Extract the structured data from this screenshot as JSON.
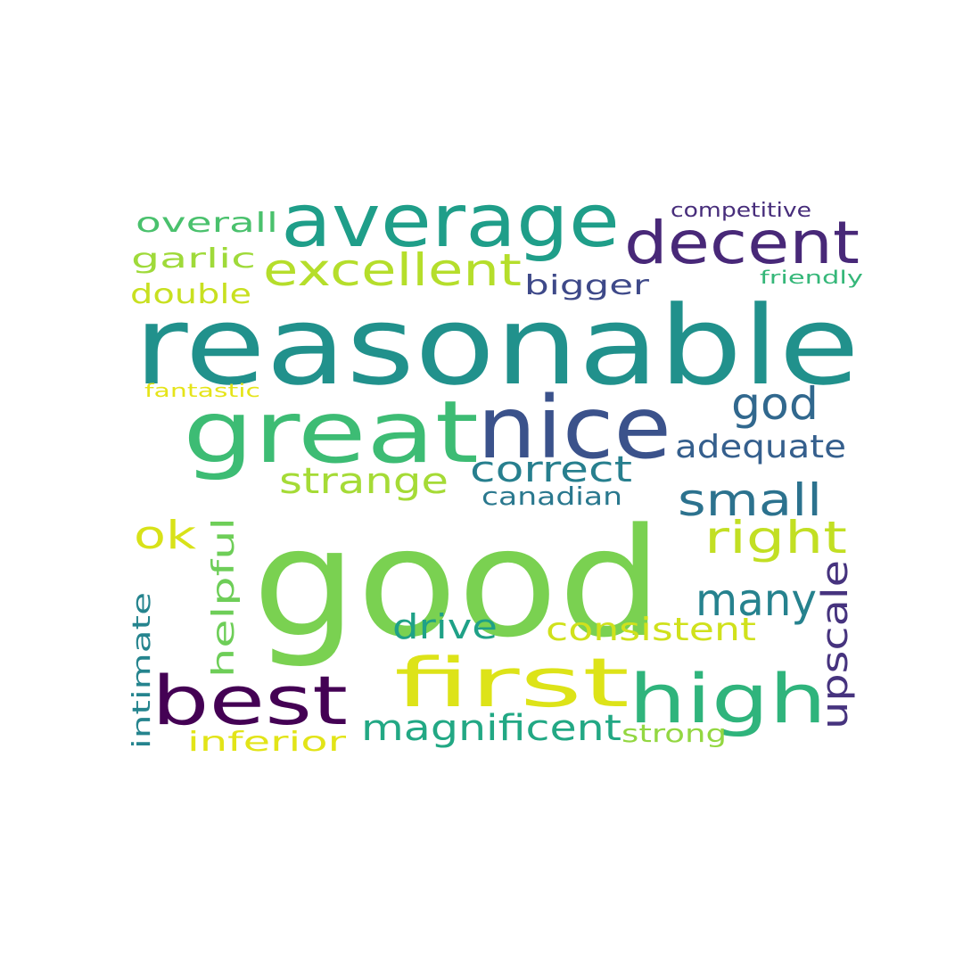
{
  "words": [
    {
      "text": "good",
      "color": "#7ad151"
    },
    {
      "text": "reasonable",
      "color": "#21918c"
    },
    {
      "text": "great",
      "color": "#3dbc74"
    },
    {
      "text": "nice",
      "color": "#3b528b"
    },
    {
      "text": "average",
      "color": "#1f9e89"
    },
    {
      "text": "first",
      "color": "#dde318"
    },
    {
      "text": "high",
      "color": "#2fb47c"
    },
    {
      "text": "best",
      "color": "#440154"
    },
    {
      "text": "decent",
      "color": "#482878"
    },
    {
      "text": "excellent",
      "color": "#b5de2b"
    },
    {
      "text": "god",
      "color": "#31688e"
    },
    {
      "text": "small",
      "color": "#2c728e"
    },
    {
      "text": "many",
      "color": "#26828e"
    },
    {
      "text": "right",
      "color": "#c2df23"
    },
    {
      "text": "correct",
      "color": "#277f8e"
    },
    {
      "text": "adequate",
      "color": "#355f8d"
    },
    {
      "text": "strange",
      "color": "#a5db36"
    },
    {
      "text": "ok",
      "color": "#d8e219"
    },
    {
      "text": "upscale",
      "color": "#46337e"
    },
    {
      "text": "helpful",
      "color": "#6ece58"
    },
    {
      "text": "magnificent",
      "color": "#22a884"
    },
    {
      "text": "consistent",
      "color": "#d0e11c"
    },
    {
      "text": "drive",
      "color": "#1fa187"
    },
    {
      "text": "bigger",
      "color": "#3e4989"
    },
    {
      "text": "overall",
      "color": "#4ac16d"
    },
    {
      "text": "garlic",
      "color": "#9fda3a"
    },
    {
      "text": "double",
      "color": "#c8e020"
    },
    {
      "text": "inferior",
      "color": "#e2e418"
    },
    {
      "text": "intimate",
      "color": "#25848e"
    },
    {
      "text": "canadian",
      "color": "#2a788e"
    },
    {
      "text": "strong",
      "color": "#93d741"
    },
    {
      "text": "competitive",
      "color": "#472d7b"
    },
    {
      "text": "friendly",
      "color": "#35b779"
    },
    {
      "text": "fantastic",
      "color": "#e5e419"
    }
  ]
}
